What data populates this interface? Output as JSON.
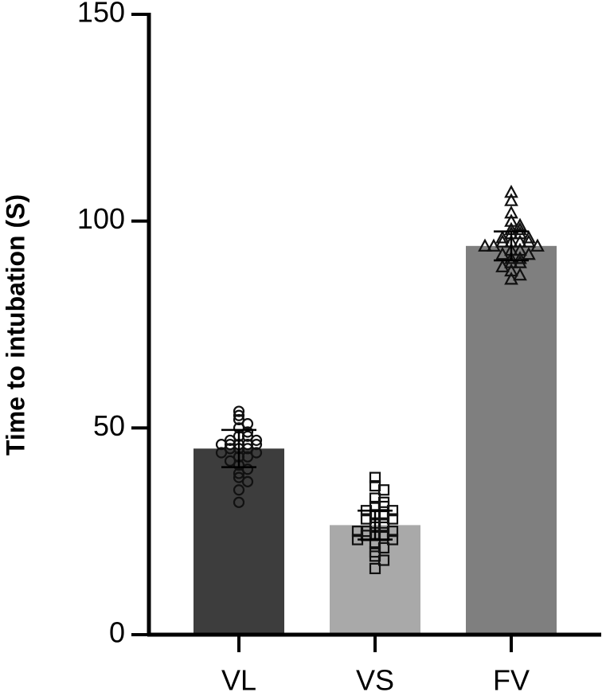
{
  "chart_data": {
    "type": "bar",
    "y_label": "Time to intubation (S)",
    "categories": [
      "VL",
      "VS",
      "FV"
    ],
    "values": [
      45,
      26.5,
      94
    ],
    "errors": [
      4.5,
      3.5,
      3.5
    ],
    "colors": [
      "#3d3d3d",
      "#a9a9a9",
      "#7f7f7f"
    ],
    "markers": [
      "circle",
      "square",
      "triangle"
    ],
    "points": [
      [
        54,
        53,
        52,
        51,
        50,
        49,
        48,
        48,
        47,
        47,
        46,
        46,
        46,
        46,
        46,
        45,
        45,
        45,
        44,
        44,
        43,
        43,
        42,
        41,
        40,
        39,
        38,
        37,
        35,
        32
      ],
      [
        38,
        36,
        35,
        33,
        32,
        31,
        31,
        30,
        30,
        29,
        29,
        28,
        28,
        27,
        27,
        26,
        26,
        25,
        25,
        25,
        24,
        24,
        24,
        23,
        23,
        22,
        21,
        20,
        19,
        18,
        16
      ],
      [
        107,
        105,
        102,
        100,
        99,
        98,
        98,
        97,
        97,
        96,
        96,
        95,
        95,
        95,
        95,
        94,
        94,
        94,
        93,
        93,
        92,
        92,
        91,
        91,
        90,
        90,
        89,
        88,
        87,
        86
      ]
    ],
    "ylim": [
      0,
      150
    ],
    "yticks": [
      0,
      50,
      100,
      150
    ]
  }
}
